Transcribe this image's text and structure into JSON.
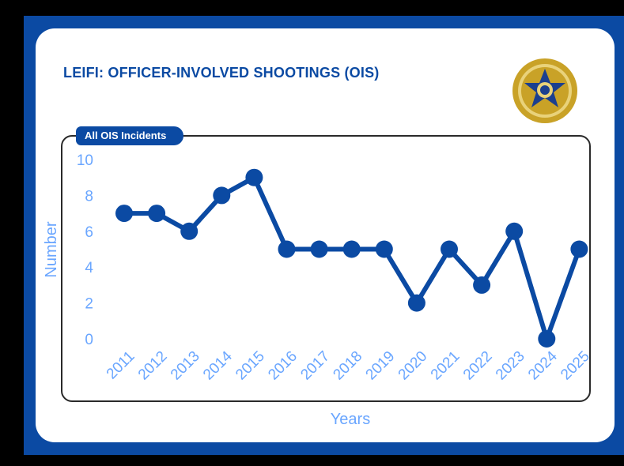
{
  "header": {
    "title": "LEIFI: OFFICER-INVOLVED SHOOTINGS (OIS)",
    "chart_tag": "All OIS Incidents"
  },
  "colors": {
    "frame": "#0b4aa3",
    "title": "#0b4aa3",
    "line": "#0b4aa3",
    "axis_text": "#6aa6ff",
    "badge_gold": "#c9a227",
    "badge_blue": "#1b3f8f"
  },
  "badge": {
    "icon": "sheriff-star-seal-icon"
  },
  "chart_data": {
    "type": "line",
    "title": "",
    "xlabel": "Years",
    "ylabel": "Number",
    "ylim": [
      0,
      10
    ],
    "yticks": [
      0,
      2,
      4,
      6,
      8,
      10
    ],
    "grid": false,
    "categories": [
      "2011",
      "2012",
      "2013",
      "2014",
      "2015",
      "2016",
      "2017",
      "2018",
      "2019",
      "2020",
      "2021",
      "2022",
      "2023",
      "2024",
      "2025"
    ],
    "series": [
      {
        "values": [
          7,
          7,
          6,
          8,
          9,
          5,
          5,
          5,
          5,
          2,
          5,
          3,
          6,
          0,
          5
        ]
      }
    ]
  }
}
